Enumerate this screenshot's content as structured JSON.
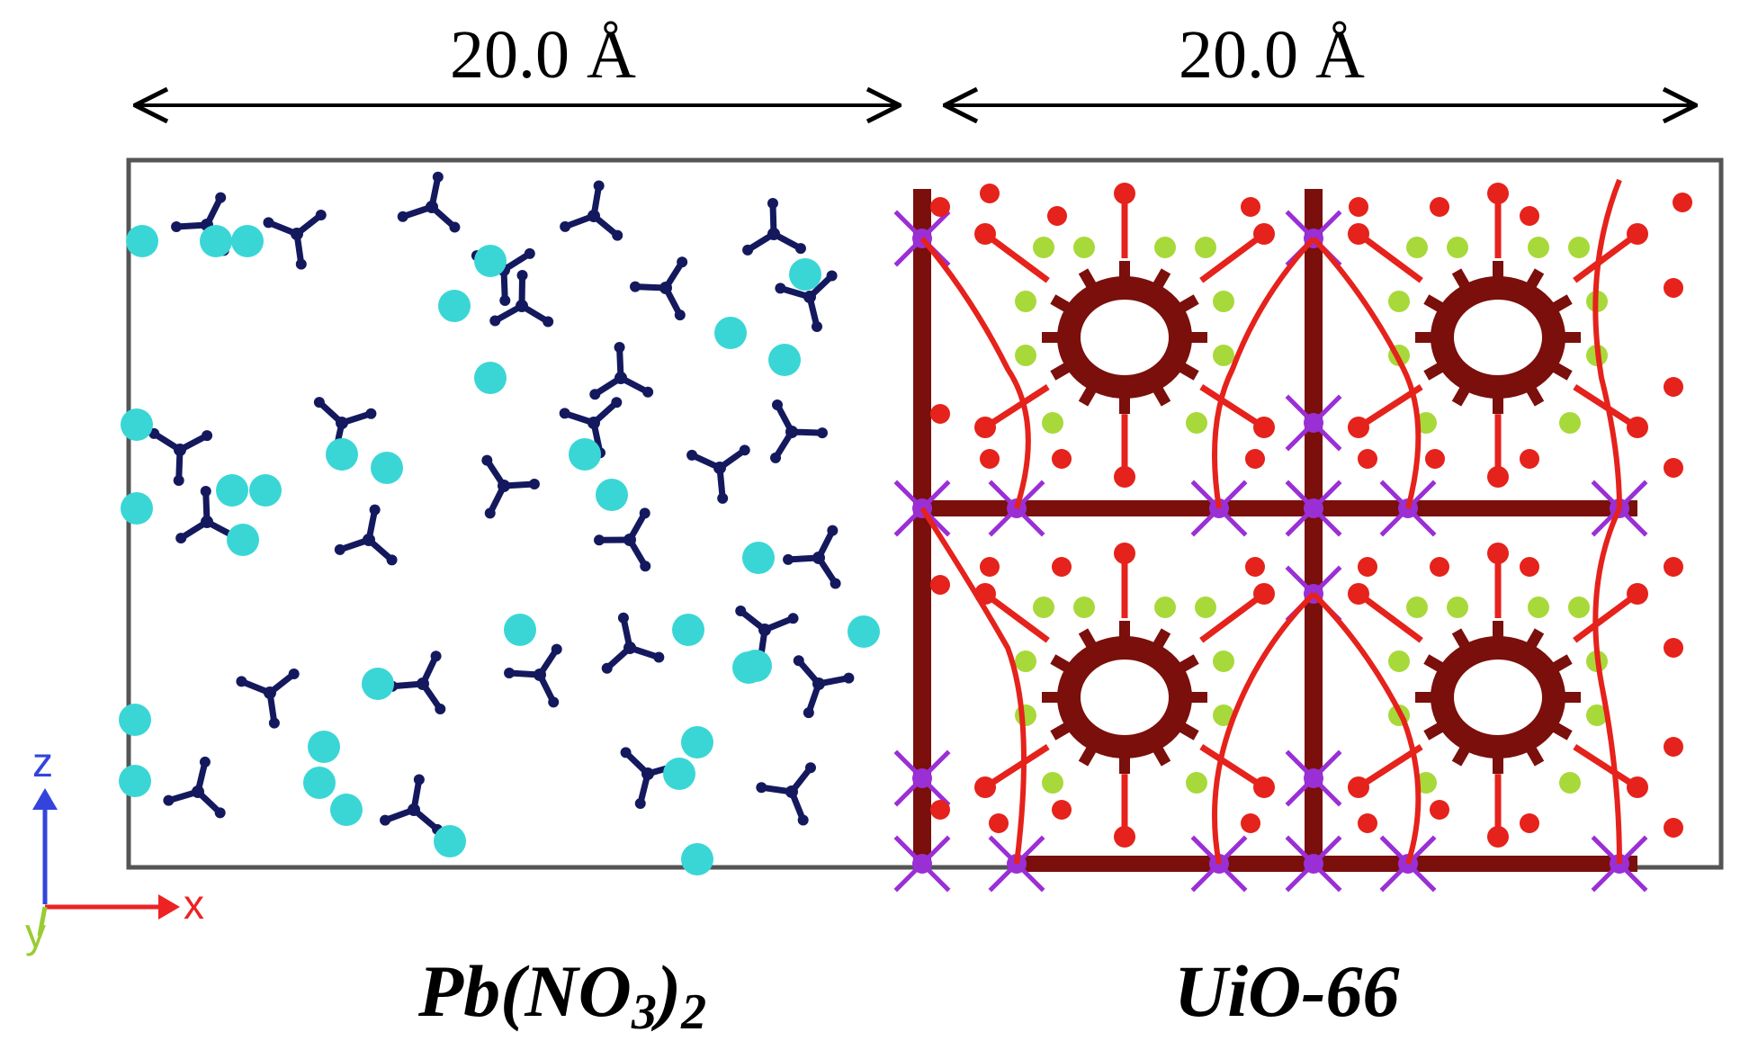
{
  "dimensions": {
    "left_width": "20.0 Å",
    "right_width": "20.0 Å"
  },
  "captions": {
    "left_formula_main": "Pb(NO",
    "left_formula_sub3": "3",
    "left_formula_close": ")",
    "left_formula_sub2": "2",
    "right": "UiO-66"
  },
  "axes": {
    "z_label": "z",
    "x_label": "x",
    "y_label": "y",
    "z_color": "#3344dd",
    "x_color": "#ee2222",
    "y_color": "#99cc33"
  },
  "colors": {
    "nitrate": "#14195e",
    "lead_ion": "#3ad6d6",
    "oxygen": "#e5221b",
    "carbon": "#7a0f0c",
    "zirconium": "#9a2fd6",
    "hydrogen": "#a8d93a",
    "box": "#555555"
  }
}
